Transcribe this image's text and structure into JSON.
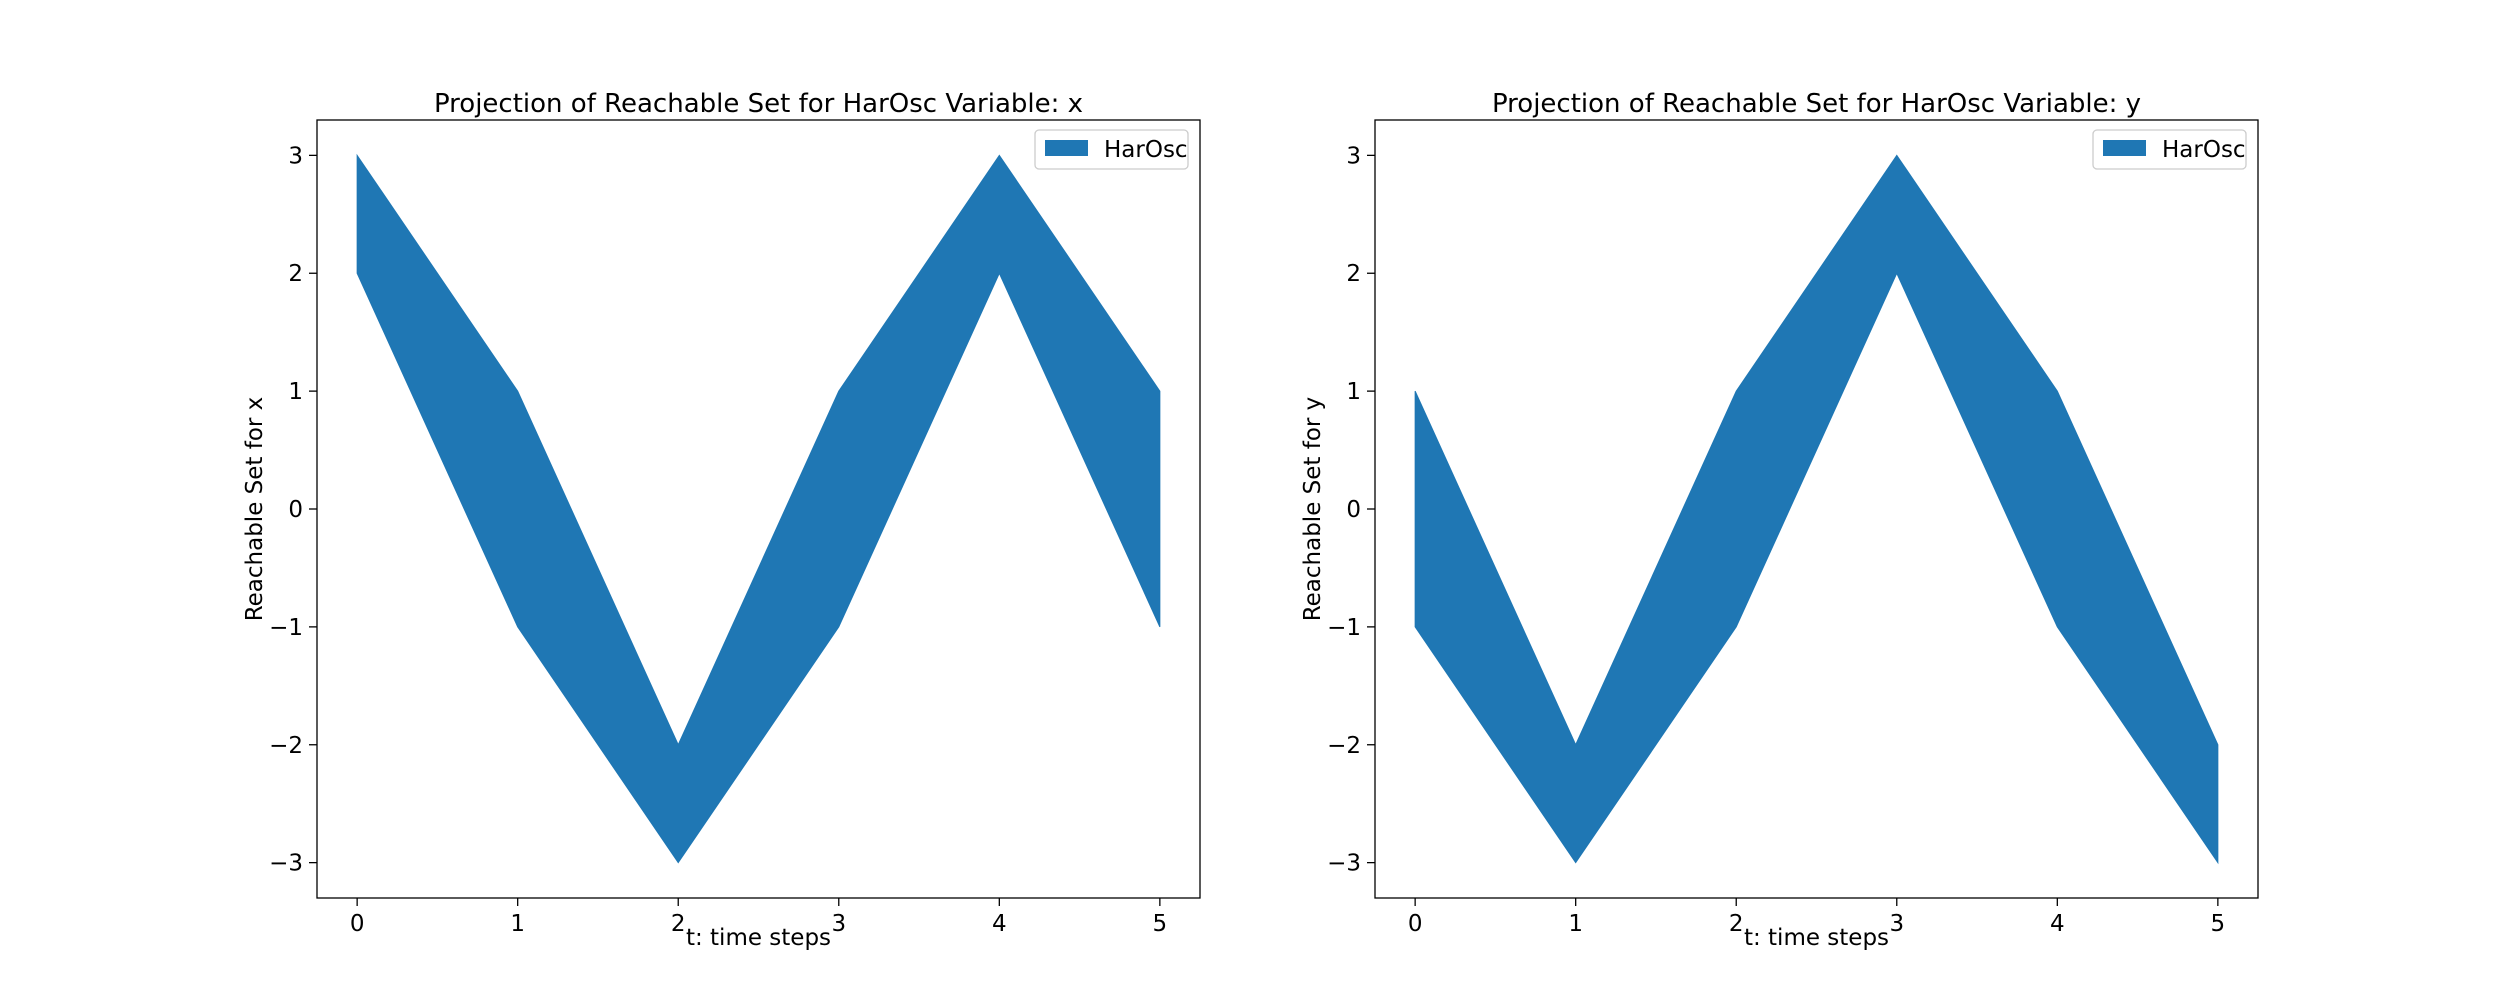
{
  "chart_data": [
    {
      "type": "area",
      "title": "Projection of Reachable Set for HarOsc Variable: x",
      "xlabel": "t: time steps",
      "ylabel": "Reachable Set for x",
      "x": [
        0,
        1,
        2,
        3,
        4,
        5
      ],
      "series": [
        {
          "name": "HarOsc",
          "lower": [
            2,
            -1,
            -3,
            -1,
            2,
            -1
          ],
          "upper": [
            3,
            1,
            -2,
            1,
            3,
            1
          ],
          "color": "#1f77b4"
        }
      ],
      "xlim": [
        -0.25,
        5.25
      ],
      "ylim": [
        -3.3,
        3.3
      ],
      "xticks": [
        "0",
        "1",
        "2",
        "3",
        "4",
        "5"
      ],
      "yticks": [
        "−3",
        "−2",
        "−1",
        "0",
        "1",
        "2",
        "3"
      ],
      "legend": "top-right",
      "grid": false
    },
    {
      "type": "area",
      "title": "Projection of Reachable Set for HarOsc Variable: y",
      "xlabel": "t: time steps",
      "ylabel": "Reachable Set for y",
      "x": [
        0,
        1,
        2,
        3,
        4,
        5
      ],
      "series": [
        {
          "name": "HarOsc",
          "lower": [
            -1,
            -3,
            -1,
            2,
            -1,
            -3
          ],
          "upper": [
            1,
            -2,
            1,
            3,
            1,
            -2
          ],
          "color": "#1f77b4"
        }
      ],
      "xlim": [
        -0.25,
        5.25
      ],
      "ylim": [
        -3.3,
        3.3
      ],
      "xticks": [
        "0",
        "1",
        "2",
        "3",
        "4",
        "5"
      ],
      "yticks": [
        "−3",
        "−2",
        "−1",
        "0",
        "1",
        "2",
        "3"
      ],
      "legend": "top-right",
      "grid": false
    }
  ]
}
